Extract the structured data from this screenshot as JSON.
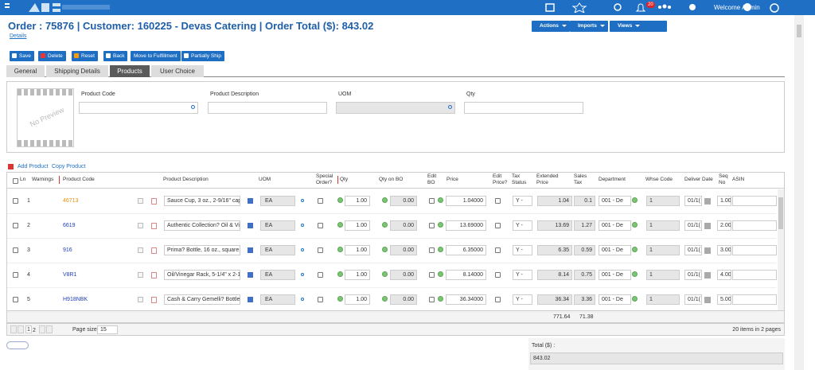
{
  "header": {
    "notification_count": "20",
    "user": "Welcome Admin"
  },
  "order": {
    "title": "Order : 75876 | Customer: 160225 - Devas Catering | Order Total ($): 843.02",
    "details_link": "Details"
  },
  "menus": [
    "Actions",
    "Imports",
    "Views"
  ],
  "toolbar": [
    "Save",
    "Delete",
    "Reset",
    "Back",
    "Move to Fulfillment",
    "Partially Ship"
  ],
  "tabs": [
    "General",
    "Shipping Details",
    "Products",
    "User Choice"
  ],
  "active_tab": 2,
  "search": {
    "image_label": "No Preview",
    "fields": [
      "Product Code",
      "Product Description",
      "UOM",
      "Qty"
    ]
  },
  "grid": {
    "actions": [
      "Add Product",
      "Copy Product"
    ],
    "columns": [
      "Ln",
      "Warnings",
      "Product Code",
      "Product Description",
      "UOM",
      "Special Order?",
      "Qty",
      "Qty on BO",
      "Edit BO",
      "Price",
      "Edit Price?",
      "Tax Status",
      "Extended Price",
      "Sales Tax",
      "Department",
      "Whse Code",
      "Deliver Date",
      "Seq No",
      "ASIN"
    ],
    "rows": [
      {
        "ln": "1",
        "code": "46713",
        "description": "Sauce Cup, 3 oz., 2-9/16\" cap",
        "uom": "EA",
        "qty": "1.00",
        "qty_bo": "0.00",
        "price": "1.04000",
        "tax": "Y -",
        "extended": "1.04",
        "sales_tax": "0.1",
        "department": "001 - De",
        "whse": "1",
        "date": "01/1(",
        "seq": "1.00"
      },
      {
        "ln": "2",
        "code": "6619",
        "description": "Authentic Collection? Oil & Vi",
        "uom": "EA",
        "qty": "1.00",
        "qty_bo": "0.00",
        "price": "13.69000",
        "tax": "Y -",
        "extended": "13.69",
        "sales_tax": "1.27",
        "department": "001 - De",
        "whse": "1",
        "date": "01/1(",
        "seq": "2.00"
      },
      {
        "ln": "3",
        "code": "916",
        "description": "Prima? Bottle, 16 oz., square,",
        "uom": "EA",
        "qty": "1.00",
        "qty_bo": "0.00",
        "price": "6.35000",
        "tax": "Y -",
        "extended": "6.35",
        "sales_tax": "0.59",
        "department": "001 - De",
        "whse": "1",
        "date": "01/1(",
        "seq": "3.00"
      },
      {
        "ln": "4",
        "code": "V8R1",
        "description": "Oil/Vinegar Rack, 5-1/4\" x 2-1",
        "uom": "EA",
        "qty": "1.00",
        "qty_bo": "0.00",
        "price": "8.14000",
        "tax": "Y -",
        "extended": "8.14",
        "sales_tax": "0.75",
        "department": "001 - De",
        "whse": "1",
        "date": "01/1(",
        "seq": "4.00"
      },
      {
        "ln": "5",
        "code": "H918NBK",
        "description": "Cash & Carry Gemelli? Bottle S",
        "uom": "EA",
        "qty": "1.00",
        "qty_bo": "0.00",
        "price": "36.34000",
        "tax": "Y -",
        "extended": "36.34",
        "sales_tax": "3.36",
        "department": "001 - De",
        "whse": "1",
        "date": "01/1(",
        "seq": "5.00"
      }
    ],
    "totals": {
      "extended": "771.64",
      "sales_tax": "71.38"
    }
  },
  "pager": {
    "pages": [
      "1",
      "2"
    ],
    "page_size_label": "Page size:",
    "page_size": "15",
    "summary": "20 items in 2 pages"
  },
  "total": {
    "label": "Total ($) :",
    "value": "843.02"
  }
}
